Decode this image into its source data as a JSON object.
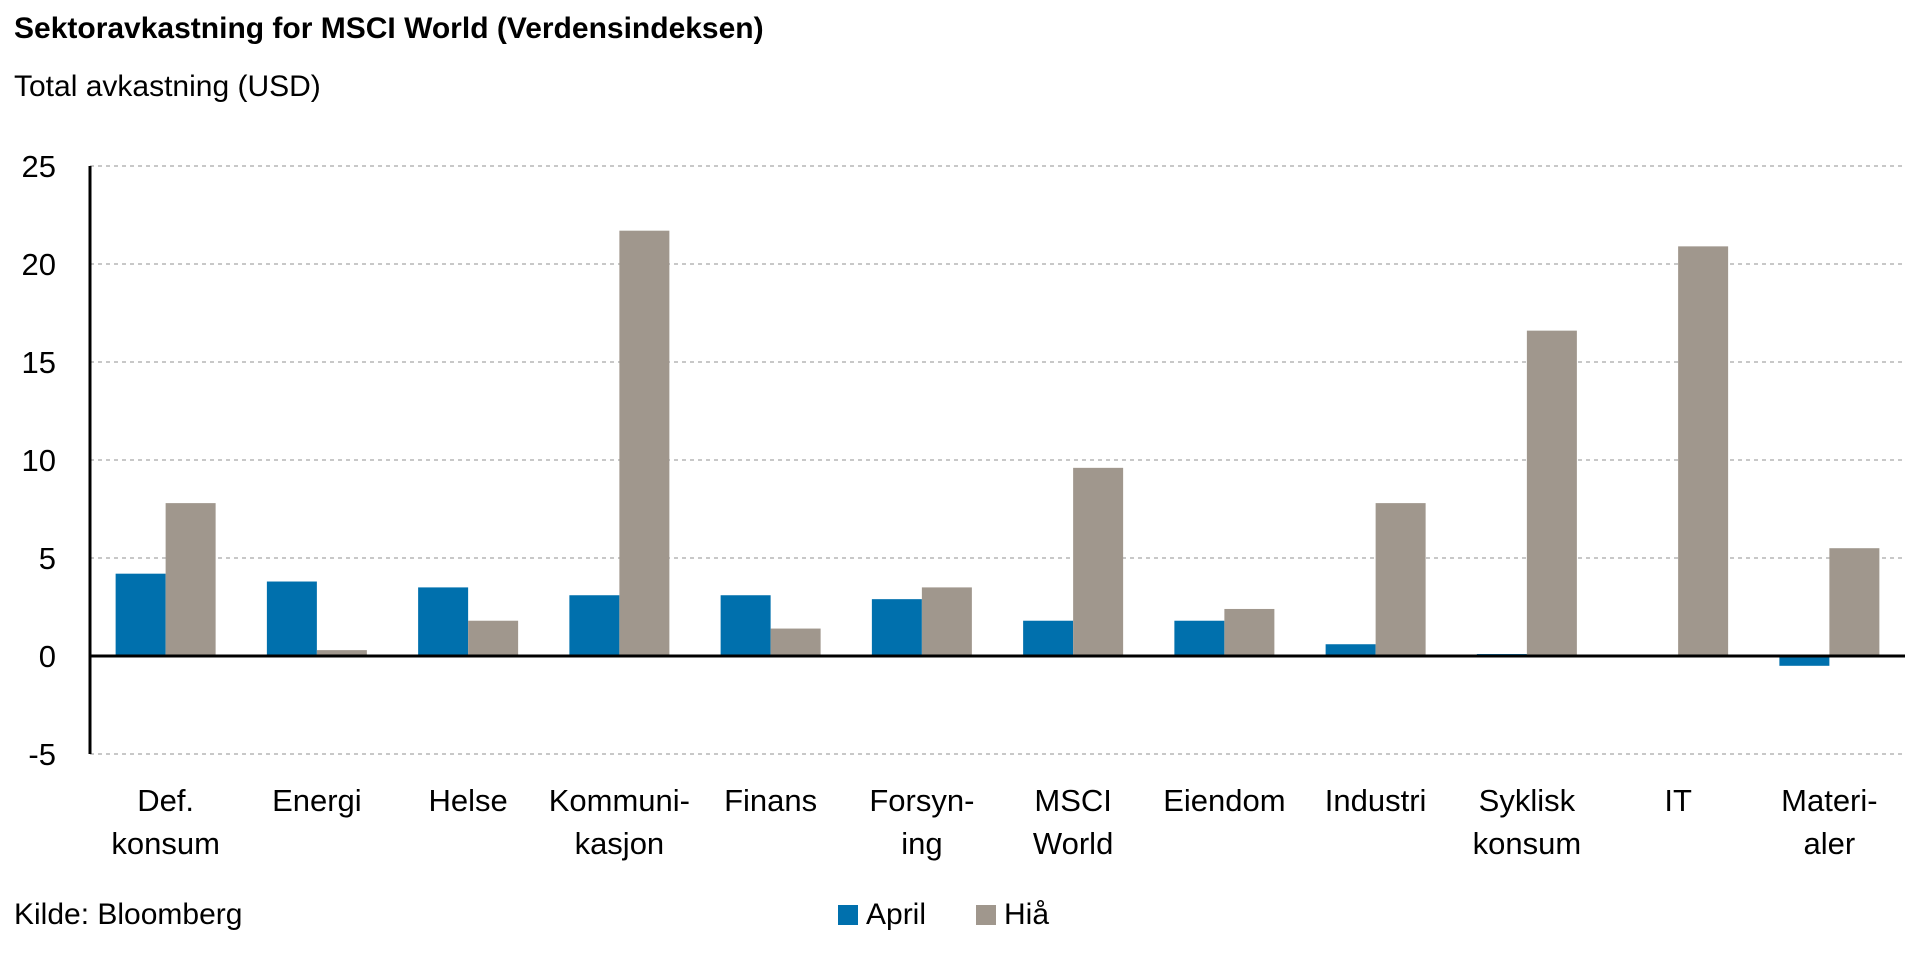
{
  "chart_data": {
    "type": "bar",
    "title": "Sektoravkastning for MSCI World (Verdensindeksen)",
    "subtitle": "Total avkastning (USD)",
    "categories": [
      [
        "Def.",
        "konsum"
      ],
      [
        "Energi"
      ],
      [
        "Helse"
      ],
      [
        "Kommuni-",
        "kasjon"
      ],
      [
        "Finans"
      ],
      [
        "Forsyn-",
        "ing"
      ],
      [
        "MSCI",
        "World"
      ],
      [
        "Eiendom"
      ],
      [
        "Industri"
      ],
      [
        "Syklisk",
        "konsum"
      ],
      [
        "IT"
      ],
      [
        "Materi-",
        "aler"
      ]
    ],
    "series": [
      {
        "name": "April",
        "color": "#0070AD",
        "values": [
          4.2,
          3.8,
          3.5,
          3.1,
          3.1,
          2.9,
          1.8,
          1.8,
          0.6,
          0.1,
          0.05,
          -0.5
        ]
      },
      {
        "name": "Hiå",
        "color": "#A0978D",
        "values": [
          7.8,
          0.3,
          1.8,
          21.7,
          1.4,
          3.5,
          9.6,
          2.4,
          7.8,
          16.6,
          20.9,
          5.5
        ]
      }
    ],
    "ylim": [
      -5,
      25
    ],
    "yticks": [
      -5,
      0,
      5,
      10,
      15,
      20,
      25
    ],
    "grid": true,
    "legend_position": "bottom"
  },
  "source": "Kilde: Bloomberg"
}
